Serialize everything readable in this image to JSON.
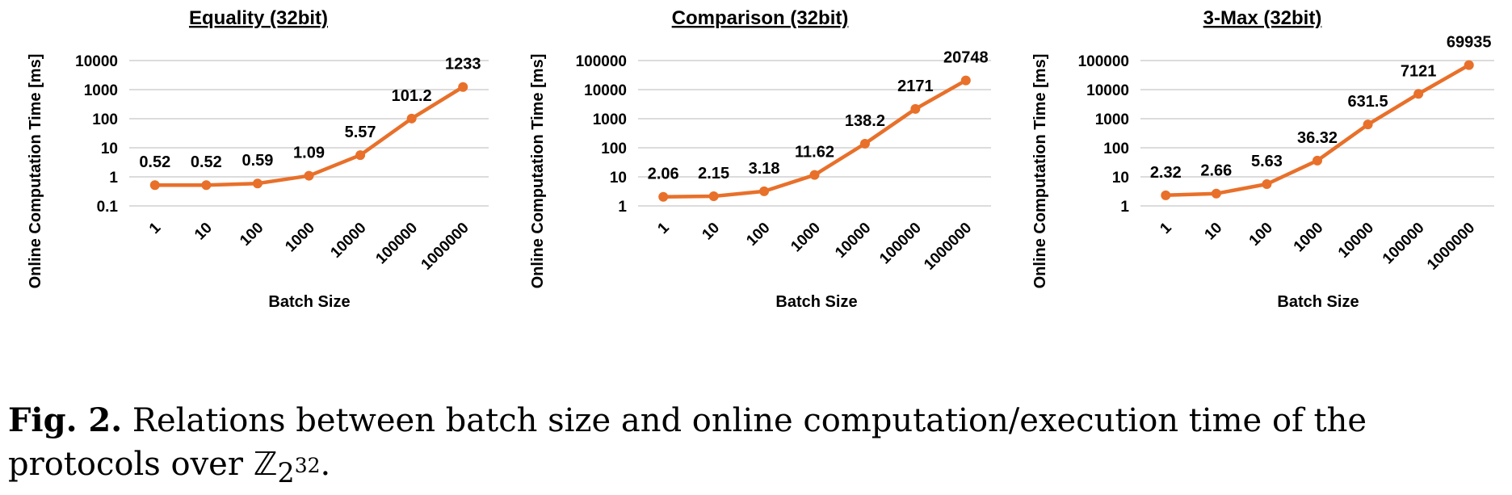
{
  "chart_data": [
    {
      "type": "line",
      "title": "Equality (32bit)",
      "xlabel": "Batch Size",
      "ylabel": "Online Computation Time [ms]",
      "y_scale": "log",
      "ylim": [
        0.1,
        10000
      ],
      "y_ticks": [
        "0.1",
        "1",
        "10",
        "100",
        "1000",
        "10000"
      ],
      "categories": [
        "1",
        "10",
        "100",
        "1000",
        "10000",
        "100000",
        "1000000"
      ],
      "values": [
        0.52,
        0.52,
        0.59,
        1.09,
        5.57,
        101.2,
        1233
      ],
      "data_labels": [
        "0.52",
        "0.52",
        "0.59",
        "1.09",
        "5.57",
        "101.2",
        "1233"
      ],
      "color": "#e8702a",
      "grid": true
    },
    {
      "type": "line",
      "title": "Comparison (32bit)",
      "xlabel": "Batch Size",
      "ylabel": "Online Computation Time [ms]",
      "y_scale": "log",
      "ylim": [
        1,
        100000
      ],
      "y_ticks": [
        "1",
        "10",
        "100",
        "1000",
        "10000",
        "100000"
      ],
      "categories": [
        "1",
        "10",
        "100",
        "1000",
        "10000",
        "100000",
        "1000000"
      ],
      "values": [
        2.06,
        2.15,
        3.18,
        11.62,
        138.2,
        2171,
        20748
      ],
      "data_labels": [
        "2.06",
        "2.15",
        "3.18",
        "11.62",
        "138.2",
        "2171",
        "20748"
      ],
      "color": "#e8702a",
      "grid": true
    },
    {
      "type": "line",
      "title": "3-Max (32bit)",
      "xlabel": "Batch Size",
      "ylabel": "Online Computation Time [ms]",
      "y_scale": "log",
      "ylim": [
        1,
        100000
      ],
      "y_ticks": [
        "1",
        "10",
        "100",
        "1000",
        "10000",
        "100000"
      ],
      "categories": [
        "1",
        "10",
        "100",
        "1000",
        "10000",
        "100000",
        "1000000"
      ],
      "values": [
        2.32,
        2.66,
        5.63,
        36.32,
        631.5,
        7121,
        69935
      ],
      "data_labels": [
        "2.32",
        "2.66",
        "5.63",
        "36.32",
        "631.5",
        "7121",
        "69935"
      ],
      "color": "#e8702a",
      "grid": true
    }
  ],
  "caption": {
    "label": "Fig. 2.",
    "text": "Relations between batch size and online computation/execution time of the protocols over",
    "ring_symbol": "ℤ",
    "ring_base": "2",
    "ring_exponent": "32",
    "period": "."
  }
}
